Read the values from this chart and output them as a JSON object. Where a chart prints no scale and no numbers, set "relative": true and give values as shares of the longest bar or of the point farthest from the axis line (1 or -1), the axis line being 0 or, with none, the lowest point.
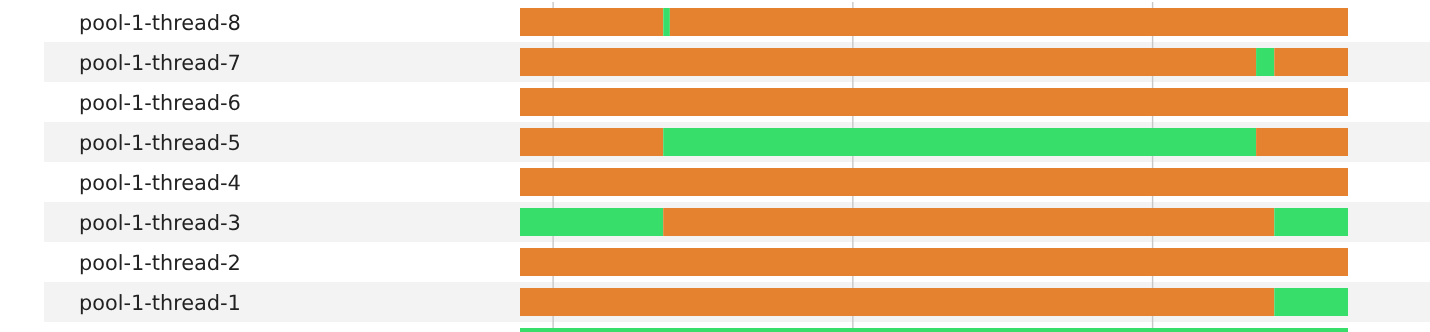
{
  "chart_data": {
    "type": "bar",
    "orientation": "horizontal",
    "stacked": true,
    "relative": true,
    "grid": false,
    "legend": false,
    "categories": [
      "pool-1-thread-8",
      "pool-1-thread-7",
      "pool-1-thread-6",
      "pool-1-thread-5",
      "pool-1-thread-4",
      "pool-1-thread-3",
      "pool-1-thread-2",
      "pool-1-thread-1",
      null
    ],
    "series": [
      {
        "values": [
          0.173,
          0.889,
          1,
          0.173,
          1,
          0.173,
          1,
          0.911,
          1
        ],
        "colors": [
          "#e5822f",
          "#e5822f",
          "#e5822f",
          "#e5822f",
          "#e5822f",
          "#38de6a",
          "#e5822f",
          "#e5822f",
          "#38de6a"
        ]
      },
      {
        "values": [
          0.008,
          0.022,
          null,
          0.716,
          null,
          0.738,
          null,
          0.089,
          null
        ],
        "colors": [
          "#38de6a",
          "#38de6a",
          "#e5822f",
          "#38de6a",
          "#e5822f",
          "#e5822f",
          "#e5822f",
          "#38de6a",
          "#e5822f"
        ]
      },
      {
        "values": [
          0.819,
          0.089,
          null,
          0.111,
          null,
          0.089,
          null,
          null,
          null
        ],
        "colors": [
          "#e5822f",
          "#e5822f",
          "#e5822f",
          "#e5822f",
          "#e5822f",
          "#38de6a",
          "#e5822f",
          "#e5822f",
          "#e5822f"
        ]
      }
    ],
    "ref_lines": [
      {
        "axis": "x",
        "value": 0.04,
        "color": "#c8c8c8"
      },
      {
        "axis": "x",
        "value": 0.402,
        "color": "#c8c8c8"
      },
      {
        "axis": "x",
        "value": 0.764,
        "color": "#c8c8c8"
      }
    ]
  }
}
